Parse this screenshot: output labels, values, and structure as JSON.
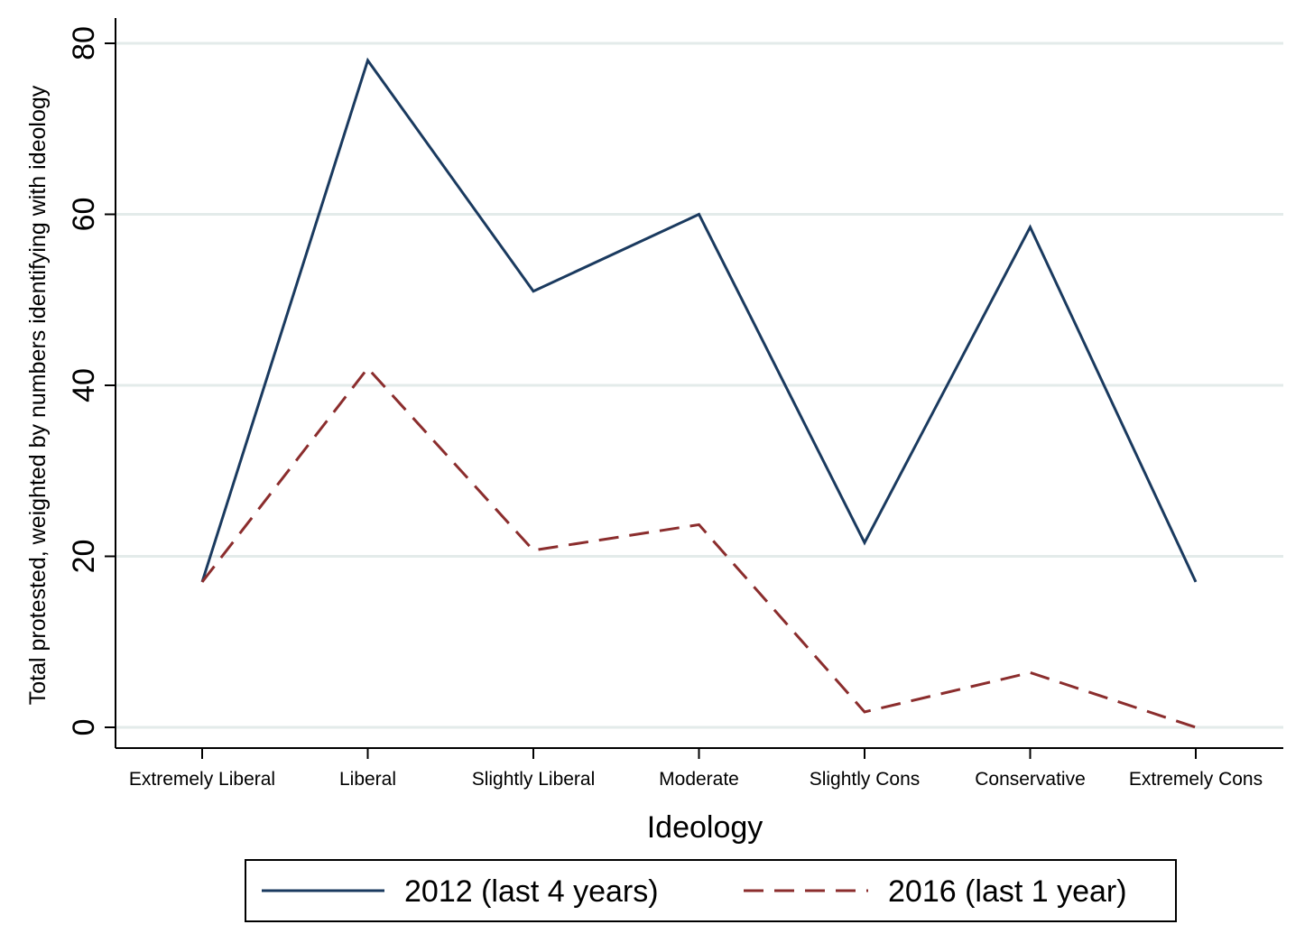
{
  "chart_data": {
    "type": "line",
    "title": "",
    "xlabel": "Ideology",
    "ylabel": "Total protested, weighted by numbers identifying with ideology",
    "categories": [
      "Extremely Liberal",
      "Liberal",
      "Slightly Liberal",
      "Moderate",
      "Slightly Cons",
      "Conservative",
      "Extremely Cons"
    ],
    "ylim": [
      0,
      80
    ],
    "yticks": [
      "0",
      "20",
      "40",
      "60",
      "80"
    ],
    "grid": true,
    "legend_position": "bottom",
    "series": [
      {
        "name": "2012 (last 4 years)",
        "values": [
          17,
          78,
          51,
          60,
          21.6,
          58.5,
          17
        ],
        "color": "#1a3a5f",
        "style": "solid"
      },
      {
        "name": "2016 (last 1 year)",
        "values": [
          17,
          42,
          20.7,
          23.7,
          1.8,
          6.4,
          0
        ],
        "color": "#8b2d2d",
        "style": "dashed"
      }
    ]
  }
}
